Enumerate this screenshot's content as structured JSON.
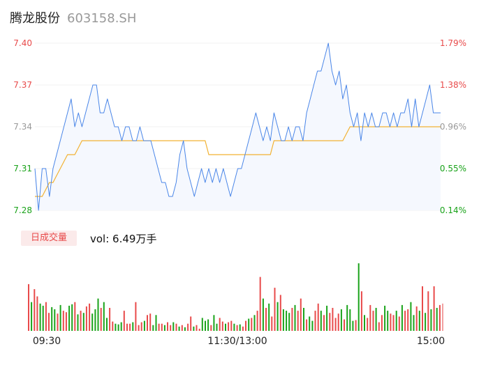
{
  "header": {
    "name": "腾龙股份",
    "code": "603158.SH"
  },
  "volume_panel": {
    "tag": "日成交量",
    "label": "vol: 6.49万手"
  },
  "colors": {
    "up": "#e84a4a",
    "down": "#1aa31a",
    "neutral": "#999999",
    "price": "#4a86e8",
    "avg": "#f2b233"
  },
  "chart_data": [
    {
      "type": "line",
      "name": "intraday-price",
      "ylim": [
        7.28,
        7.4
      ],
      "pct_ylim": [
        0.14,
        1.79
      ],
      "y_ticks": [
        {
          "label": "7.40",
          "value": 7.4,
          "color": "#e84a4a"
        },
        {
          "label": "7.37",
          "value": 7.37,
          "color": "#e84a4a"
        },
        {
          "label": "7.34",
          "value": 7.34,
          "color": "#999999"
        },
        {
          "label": "7.31",
          "value": 7.31,
          "color": "#1aa31a"
        },
        {
          "label": "7.28",
          "value": 7.28,
          "color": "#1aa31a"
        }
      ],
      "pct_ticks": [
        {
          "label": "1.79%",
          "value": 7.4,
          "color": "#e84a4a"
        },
        {
          "label": "1.38%",
          "value": 7.37,
          "color": "#e84a4a"
        },
        {
          "label": "0.96%",
          "value": 7.34,
          "color": "#999999"
        },
        {
          "label": "0.55%",
          "value": 7.31,
          "color": "#1aa31a"
        },
        {
          "label": "0.14%",
          "value": 7.28,
          "color": "#1aa31a"
        }
      ],
      "x_ticks": [
        "09:30",
        "11:30/13:00",
        "15:00"
      ],
      "price": [
        7.31,
        7.28,
        7.31,
        7.31,
        7.29,
        7.31,
        7.32,
        7.33,
        7.34,
        7.35,
        7.36,
        7.34,
        7.35,
        7.34,
        7.35,
        7.36,
        7.37,
        7.37,
        7.35,
        7.35,
        7.36,
        7.35,
        7.34,
        7.34,
        7.33,
        7.34,
        7.34,
        7.33,
        7.33,
        7.34,
        7.33,
        7.33,
        7.33,
        7.32,
        7.31,
        7.3,
        7.3,
        7.29,
        7.29,
        7.3,
        7.32,
        7.33,
        7.31,
        7.3,
        7.29,
        7.3,
        7.31,
        7.3,
        7.31,
        7.3,
        7.31,
        7.3,
        7.31,
        7.3,
        7.29,
        7.3,
        7.31,
        7.31,
        7.32,
        7.33,
        7.34,
        7.35,
        7.34,
        7.33,
        7.34,
        7.33,
        7.35,
        7.34,
        7.33,
        7.33,
        7.34,
        7.33,
        7.34,
        7.34,
        7.33,
        7.35,
        7.36,
        7.37,
        7.38,
        7.38,
        7.39,
        7.4,
        7.38,
        7.37,
        7.38,
        7.36,
        7.37,
        7.35,
        7.34,
        7.35,
        7.33,
        7.35,
        7.34,
        7.35,
        7.34,
        7.34,
        7.35,
        7.35,
        7.34,
        7.35,
        7.34,
        7.35,
        7.35,
        7.36,
        7.34,
        7.36,
        7.34,
        7.35,
        7.36,
        7.37,
        7.35,
        7.35,
        7.35
      ],
      "avg": [
        7.29,
        7.29,
        7.29,
        7.295,
        7.3,
        7.3,
        7.305,
        7.31,
        7.315,
        7.32,
        7.32,
        7.32,
        7.325,
        7.33,
        7.33,
        7.33,
        7.33,
        7.33,
        7.33,
        7.33,
        7.33,
        7.33,
        7.33,
        7.33,
        7.33,
        7.33,
        7.33,
        7.33,
        7.33,
        7.33,
        7.33,
        7.33,
        7.33,
        7.33,
        7.33,
        7.33,
        7.33,
        7.33,
        7.33,
        7.33,
        7.33,
        7.33,
        7.33,
        7.33,
        7.33,
        7.33,
        7.33,
        7.33,
        7.32,
        7.32,
        7.32,
        7.32,
        7.32,
        7.32,
        7.32,
        7.32,
        7.32,
        7.32,
        7.32,
        7.32,
        7.32,
        7.32,
        7.32,
        7.32,
        7.32,
        7.32,
        7.33,
        7.33,
        7.33,
        7.33,
        7.33,
        7.33,
        7.33,
        7.33,
        7.33,
        7.33,
        7.33,
        7.33,
        7.33,
        7.33,
        7.33,
        7.33,
        7.33,
        7.33,
        7.33,
        7.33,
        7.335,
        7.34,
        7.34,
        7.34,
        7.34,
        7.34,
        7.34,
        7.34,
        7.34,
        7.34,
        7.34,
        7.34,
        7.34,
        7.34,
        7.34,
        7.34,
        7.34,
        7.34,
        7.34,
        7.34,
        7.34,
        7.34,
        7.34,
        7.34,
        7.34,
        7.34,
        7.34
      ]
    },
    {
      "type": "bar",
      "name": "intraday-volume",
      "values": [
        65,
        40,
        58,
        48,
        38,
        35,
        40,
        25,
        33,
        30,
        24,
        36,
        28,
        26,
        35,
        37,
        40,
        23,
        28,
        25,
        34,
        38,
        24,
        30,
        45,
        32,
        40,
        18,
        32,
        13,
        10,
        9,
        12,
        28,
        10,
        10,
        12,
        40,
        8,
        12,
        14,
        22,
        24,
        8,
        22,
        10,
        10,
        8,
        12,
        8,
        12,
        10,
        6,
        8,
        5,
        10,
        20,
        6,
        8,
        3,
        18,
        14,
        16,
        8,
        22,
        10,
        18,
        13,
        10,
        12,
        14,
        10,
        8,
        9,
        6,
        14,
        17,
        18,
        22,
        28,
        75,
        45,
        32,
        38,
        20,
        60,
        40,
        50,
        30,
        28,
        25,
        32,
        36,
        28,
        45,
        32,
        16,
        20,
        14,
        28,
        38,
        28,
        22,
        35,
        25,
        32,
        18,
        24,
        30,
        16,
        36,
        30,
        14,
        15,
        94,
        55,
        22,
        18,
        36,
        28,
        32,
        12,
        22,
        35,
        28,
        24,
        22,
        28,
        20,
        36,
        28,
        30,
        40,
        22,
        34,
        28,
        62,
        25,
        55,
        30,
        62,
        32,
        36,
        38
      ],
      "colors": "rgrrggrrggrgrrggrgrgrrgggrggrrgggrrrgrrrgrrggrrgrrgrgrgrrgrrgggrggrrgrrgrgrrgrgrrgrgrrgrgggrgrrgrggrrgrgrrrrgrgggrgrgrrrgrrggrrgrgrrggrgrgrgrgrn"
    }
  ]
}
